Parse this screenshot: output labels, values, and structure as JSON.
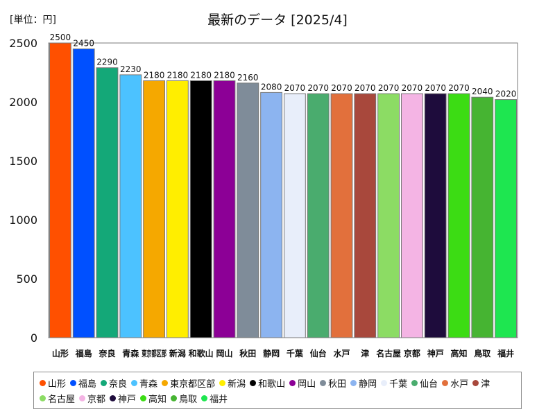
{
  "unit_label": "[単位：円]",
  "chart_data": {
    "type": "bar",
    "title": "最新のデータ [2025/4]",
    "xlabel": "",
    "ylabel": "",
    "ylim": [
      0,
      2500
    ],
    "yticks": [
      0,
      500,
      1000,
      1500,
      2000,
      2500
    ],
    "grid": false,
    "legend_position": "bottom",
    "categories": [
      "山形",
      "福島",
      "奈良",
      "青森",
      "東京都区部",
      "新潟",
      "和歌山",
      "岡山",
      "秋田",
      "静岡",
      "千葉",
      "仙台",
      "水戸",
      "津",
      "名古屋",
      "京都",
      "神戸",
      "高知",
      "鳥取",
      "福井"
    ],
    "values": [
      2500,
      2450,
      2290,
      2230,
      2180,
      2180,
      2180,
      2180,
      2160,
      2080,
      2070,
      2070,
      2070,
      2070,
      2070,
      2070,
      2070,
      2070,
      2040,
      2020
    ],
    "colors": [
      "#ff5000",
      "#0050ff",
      "#14a878",
      "#4cc2ff",
      "#f5a800",
      "#ffee00",
      "#000000",
      "#8c0096",
      "#7f8c99",
      "#8cb4f0",
      "#e8eefa",
      "#4aac6e",
      "#e2703c",
      "#a8483c",
      "#8cdc64",
      "#f4b4e4",
      "#1e0c3c",
      "#3cdc14",
      "#46b432",
      "#1ee650"
    ]
  }
}
